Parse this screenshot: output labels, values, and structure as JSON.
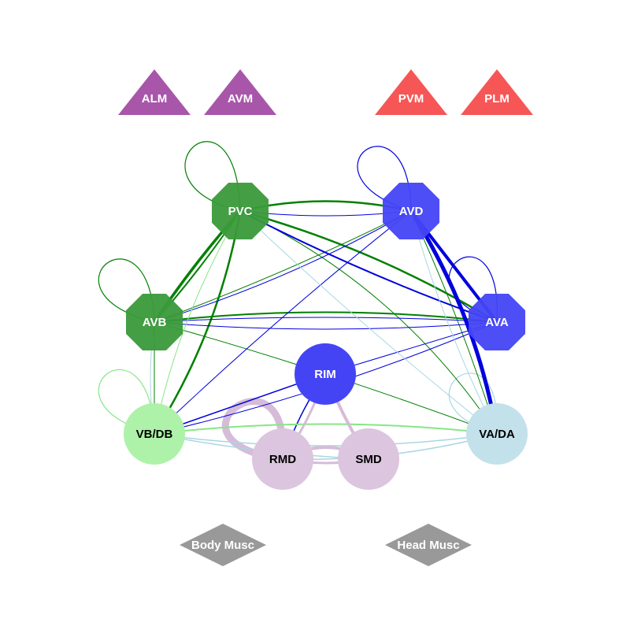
{
  "nodes": {
    "ALM": {
      "label": "ALM",
      "shape": "triangle",
      "color": "#a24da4",
      "text_color": "#ffffff"
    },
    "AVM": {
      "label": "AVM",
      "shape": "triangle",
      "color": "#a24da4",
      "text_color": "#ffffff"
    },
    "PVM": {
      "label": "PVM",
      "shape": "triangle",
      "color": "#f54d4d",
      "text_color": "#ffffff"
    },
    "PLM": {
      "label": "PLM",
      "shape": "triangle",
      "color": "#f54d4d",
      "text_color": "#ffffff"
    },
    "PVC": {
      "label": "PVC",
      "shape": "octagon",
      "color": "#3a9a3a",
      "text_color": "#ffffff"
    },
    "AVD": {
      "label": "AVD",
      "shape": "octagon",
      "color": "#4444f5",
      "text_color": "#ffffff"
    },
    "AVB": {
      "label": "AVB",
      "shape": "octagon",
      "color": "#3a9a3a",
      "text_color": "#ffffff"
    },
    "AVA": {
      "label": "AVA",
      "shape": "octagon",
      "color": "#4444f5",
      "text_color": "#ffffff"
    },
    "RIM": {
      "label": "RIM",
      "shape": "circle",
      "color": "#4444f5",
      "text_color": "#ffffff"
    },
    "VBDB": {
      "label": "VB/DB",
      "shape": "circle",
      "color": "#adf2a8",
      "text_color": "#000000"
    },
    "RMD": {
      "label": "RMD",
      "shape": "circle",
      "color": "#dcc5de",
      "text_color": "#000000"
    },
    "SMD": {
      "label": "SMD",
      "shape": "circle",
      "color": "#dcc5de",
      "text_color": "#000000"
    },
    "VADA": {
      "label": "VA/DA",
      "shape": "circle",
      "color": "#c3e1ea",
      "text_color": "#000000"
    },
    "BodyMusc": {
      "label": "Body Musc",
      "shape": "diamond",
      "color": "#999999",
      "text_color": "#ffffff"
    },
    "HeadMusc": {
      "label": "Head Musc",
      "shape": "diamond",
      "color": "#999999",
      "text_color": "#ffffff"
    }
  },
  "edge_colors": {
    "green": "#008000",
    "blue": "#0000dd",
    "light_green": "#86e686",
    "light_blue": "#a9d6e3",
    "mauve": "#d6bcd8"
  }
}
